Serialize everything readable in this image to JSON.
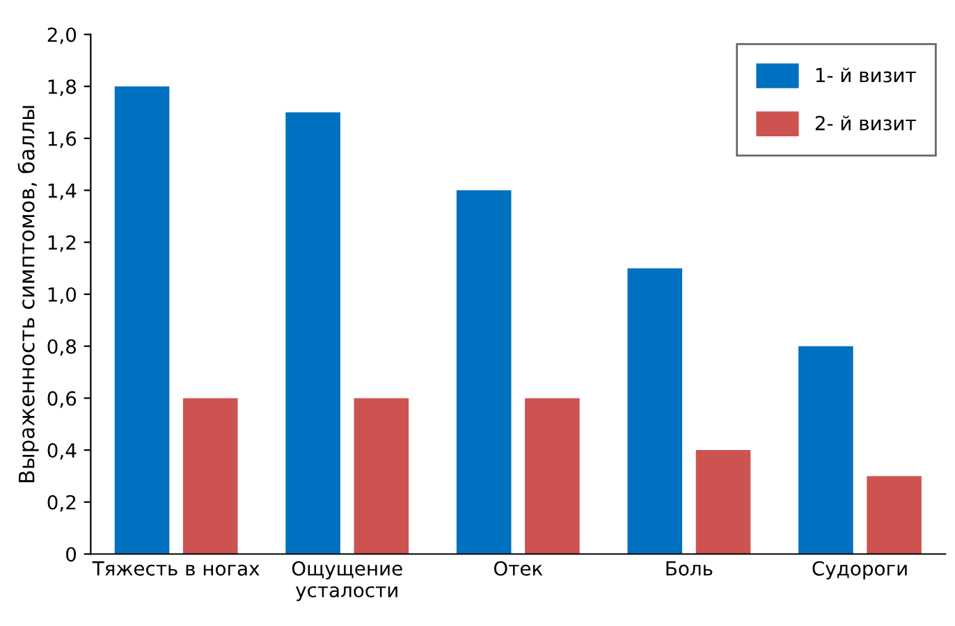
{
  "chart_data": {
    "type": "bar",
    "ylabel": "Выраженность симптомов, баллы",
    "categories": [
      "Тяжесть в ногах",
      "Ощущение\nусталости",
      "Отек",
      "Боль",
      "Судороги"
    ],
    "series": [
      {
        "name": "1- й визит",
        "color": "#0070c0",
        "values": [
          1.8,
          1.7,
          1.4,
          1.1,
          0.8
        ]
      },
      {
        "name": "2- й визит",
        "color": "#cd5350",
        "values": [
          0.6,
          0.6,
          0.6,
          0.4,
          0.3
        ]
      }
    ],
    "ylim": [
      0,
      2.0
    ],
    "yticks": [
      0,
      {
        "value": 0.2,
        "label": "0,2"
      },
      {
        "value": 0.4,
        "label": "0,4"
      },
      {
        "value": 0.6,
        "label": "0,6"
      },
      {
        "value": 0.8,
        "label": "0,8"
      },
      {
        "value": 1.0,
        "label": "1,0"
      },
      {
        "value": 1.2,
        "label": "1,2"
      },
      {
        "value": 1.4,
        "label": "1,4"
      },
      {
        "value": 1.6,
        "label": "1,6"
      },
      {
        "value": 1.8,
        "label": "1,8"
      },
      {
        "value": 2.0,
        "label": "2,0"
      }
    ],
    "grid": false,
    "legend": "top right"
  }
}
